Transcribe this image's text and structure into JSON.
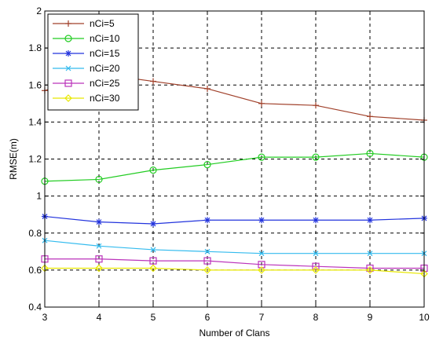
{
  "chart_data": {
    "type": "line",
    "title": "",
    "xlabel": "Number of Clans",
    "ylabel": "RMSE(m)",
    "xlim": [
      3,
      10
    ],
    "ylim": [
      0.4,
      2
    ],
    "x_ticks": [
      "3",
      "4",
      "5",
      "6",
      "7",
      "8",
      "9",
      "10"
    ],
    "y_ticks": [
      "0.4",
      "0.6",
      "0.8",
      "1",
      "1.2",
      "1.4",
      "1.6",
      "1.8",
      "2"
    ],
    "grid": true,
    "legend_position": "top-left",
    "x": [
      3,
      4,
      5,
      6,
      7,
      8,
      9,
      10
    ],
    "series": [
      {
        "name": "nCi=5",
        "color": "#a0402a",
        "marker": "plus",
        "values": [
          1.57,
          1.66,
          1.62,
          1.58,
          1.5,
          1.49,
          1.43,
          1.41
        ]
      },
      {
        "name": "nCi=10",
        "color": "#22cc22",
        "marker": "circle",
        "values": [
          1.08,
          1.09,
          1.14,
          1.17,
          1.21,
          1.21,
          1.23,
          1.21
        ]
      },
      {
        "name": "nCi=15",
        "color": "#2233dd",
        "marker": "asterisk",
        "values": [
          0.89,
          0.86,
          0.85,
          0.87,
          0.87,
          0.87,
          0.87,
          0.88
        ]
      },
      {
        "name": "nCi=20",
        "color": "#33bbee",
        "marker": "x",
        "values": [
          0.76,
          0.73,
          0.71,
          0.7,
          0.69,
          0.69,
          0.69,
          0.69
        ]
      },
      {
        "name": "nCi=25",
        "color": "#bb33bb",
        "marker": "square",
        "values": [
          0.66,
          0.66,
          0.65,
          0.65,
          0.63,
          0.62,
          0.61,
          0.61
        ]
      },
      {
        "name": "nCi=30",
        "color": "#e8e800",
        "marker": "diamond",
        "values": [
          0.61,
          0.61,
          0.61,
          0.6,
          0.6,
          0.6,
          0.6,
          0.58
        ]
      }
    ]
  }
}
